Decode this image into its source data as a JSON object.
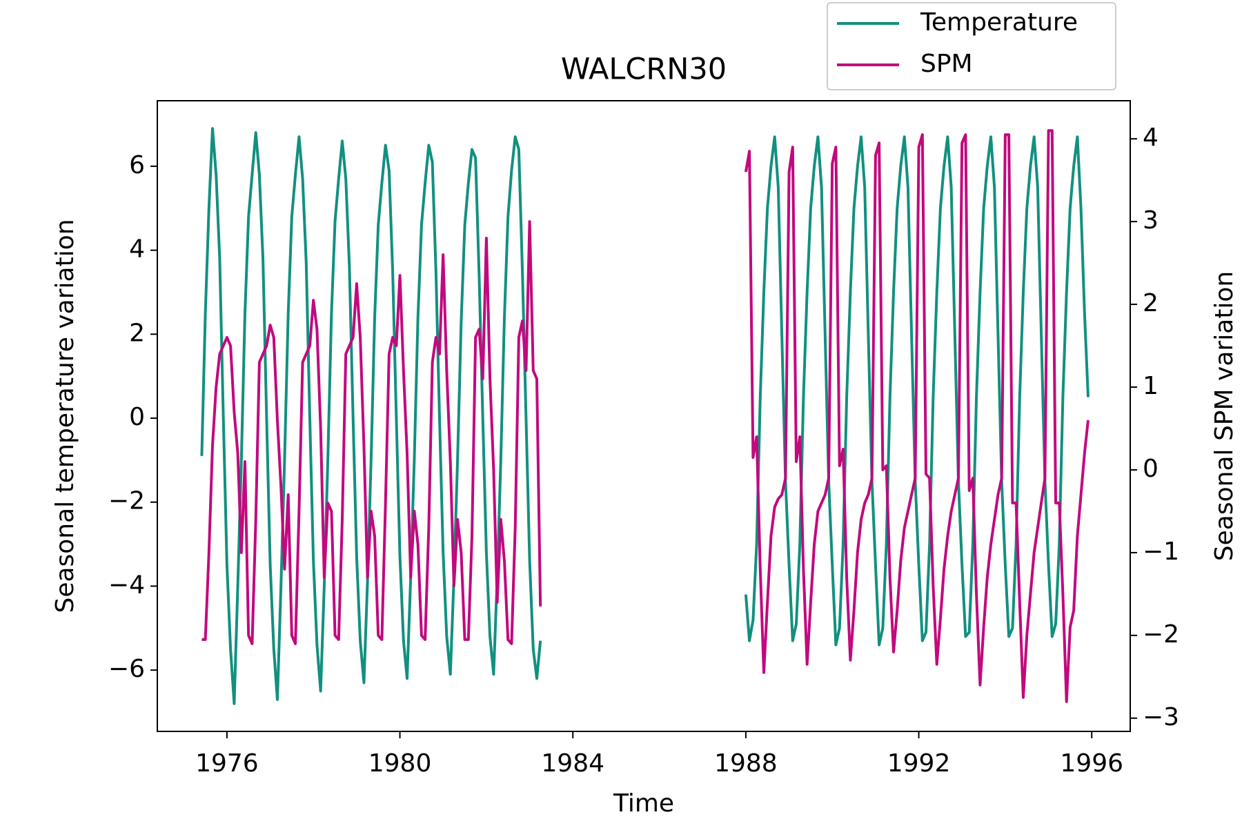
{
  "chart_data": {
    "type": "line",
    "title": "WALCRN30",
    "x_label": "Time",
    "y_label": "Seasonal temperature variation",
    "y2_label": "Seasonal SPM variation",
    "x": [
      1975.417,
      1975.5,
      1975.583,
      1975.667,
      1975.75,
      1975.833,
      1975.917,
      1976,
      1976.083,
      1976.167,
      1976.25,
      1976.333,
      1976.417,
      1976.5,
      1976.583,
      1976.667,
      1976.75,
      1976.833,
      1976.917,
      1977,
      1977.083,
      1977.167,
      1977.25,
      1977.333,
      1977.417,
      1977.5,
      1977.583,
      1977.667,
      1977.75,
      1977.833,
      1977.917,
      1978,
      1978.083,
      1978.167,
      1978.25,
      1978.333,
      1978.417,
      1978.5,
      1978.583,
      1978.667,
      1978.75,
      1978.833,
      1978.917,
      1979,
      1979.083,
      1979.167,
      1979.25,
      1979.333,
      1979.417,
      1979.5,
      1979.583,
      1979.667,
      1979.75,
      1979.833,
      1979.917,
      1980,
      1980.083,
      1980.167,
      1980.25,
      1980.333,
      1980.417,
      1980.5,
      1980.583,
      1980.667,
      1980.75,
      1980.833,
      1980.917,
      1981,
      1981.083,
      1981.167,
      1981.25,
      1981.333,
      1981.417,
      1981.5,
      1981.583,
      1981.667,
      1981.75,
      1981.833,
      1981.917,
      1982,
      1982.083,
      1982.167,
      1982.25,
      1982.333,
      1982.417,
      1982.5,
      1982.583,
      1982.667,
      1982.75,
      1982.833,
      1982.917,
      1983,
      1983.083,
      1983.167,
      1983.25,
      1983.333,
      1988,
      1988.083,
      1988.167,
      1988.25,
      1988.333,
      1988.417,
      1988.5,
      1988.583,
      1988.667,
      1988.75,
      1988.833,
      1988.917,
      1989,
      1989.083,
      1989.167,
      1989.25,
      1989.333,
      1989.417,
      1989.5,
      1989.583,
      1989.667,
      1989.75,
      1989.833,
      1989.917,
      1990,
      1990.083,
      1990.167,
      1990.25,
      1990.333,
      1990.417,
      1990.5,
      1990.583,
      1990.667,
      1990.75,
      1990.833,
      1990.917,
      1991,
      1991.083,
      1991.167,
      1991.25,
      1991.333,
      1991.417,
      1991.5,
      1991.583,
      1991.667,
      1991.75,
      1991.833,
      1991.917,
      1992,
      1992.083,
      1992.167,
      1992.25,
      1992.333,
      1992.417,
      1992.5,
      1992.583,
      1992.667,
      1992.75,
      1992.833,
      1992.917,
      1993,
      1993.083,
      1993.167,
      1993.25,
      1993.333,
      1993.417,
      1993.5,
      1993.583,
      1993.667,
      1993.75,
      1993.833,
      1993.917,
      1994,
      1994.083,
      1994.167,
      1994.25,
      1994.333,
      1994.417,
      1994.5,
      1994.583,
      1994.667,
      1994.75,
      1994.833,
      1994.917,
      1995,
      1995.083,
      1995.167,
      1995.25,
      1995.333,
      1995.417,
      1995.5,
      1995.583,
      1995.667,
      1995.75,
      1995.833,
      1995.917
    ],
    "series": [
      {
        "name": "Temperature",
        "color": "#12907f",
        "values": [
          -0.9,
          2.5,
          5.0,
          6.9,
          5.8,
          3.8,
          0.0,
          -3.5,
          -5.5,
          -6.8,
          -4.0,
          -1.0,
          2.5,
          4.8,
          5.8,
          6.8,
          5.8,
          3.8,
          0.0,
          -3.5,
          -5.5,
          -6.7,
          -4.0,
          -1.0,
          2.5,
          4.8,
          5.8,
          6.7,
          5.7,
          3.7,
          0.0,
          -3.4,
          -5.4,
          -6.5,
          -4.0,
          -1.0,
          2.5,
          4.7,
          5.7,
          6.6,
          5.7,
          3.6,
          0.0,
          -3.3,
          -5.3,
          -6.3,
          -3.9,
          -1.0,
          2.4,
          4.6,
          5.6,
          6.5,
          5.9,
          3.5,
          0.0,
          -3.3,
          -5.3,
          -6.2,
          -3.8,
          -1.0,
          2.4,
          4.6,
          5.6,
          6.5,
          6.1,
          3.5,
          0.0,
          -3.2,
          -5.2,
          -6.1,
          -3.8,
          -1.0,
          2.3,
          4.6,
          5.6,
          6.4,
          6.2,
          3.4,
          0.0,
          -3.2,
          -5.2,
          -6.1,
          -3.8,
          -1.0,
          2.4,
          4.8,
          5.9,
          6.7,
          6.4,
          3.5,
          0.0,
          -3.4,
          -5.5,
          -6.2,
          -5.3,
          null,
          -4.2,
          -5.3,
          -4.8,
          -3.0,
          0.5,
          3.0,
          5.0,
          6.0,
          6.7,
          5.5,
          2.0,
          -1.5,
          -3.5,
          -5.3,
          -4.9,
          -3.0,
          0.5,
          3.0,
          5.0,
          6.0,
          6.7,
          5.5,
          2.0,
          -1.5,
          -3.5,
          -5.4,
          -5.0,
          -3.0,
          0.5,
          3.0,
          5.0,
          6.0,
          6.7,
          5.5,
          2.0,
          -1.5,
          -3.5,
          -5.4,
          -5.0,
          -3.0,
          0.5,
          3.0,
          5.0,
          6.0,
          6.7,
          5.5,
          2.0,
          -1.5,
          -3.5,
          -5.3,
          -5.1,
          -3.0,
          0.5,
          3.0,
          5.0,
          6.0,
          6.7,
          5.5,
          2.0,
          -1.5,
          -3.5,
          -5.2,
          -5.1,
          -3.0,
          0.5,
          3.0,
          5.0,
          6.0,
          6.7,
          5.5,
          2.0,
          -1.5,
          -3.5,
          -5.2,
          -5.0,
          -3.0,
          0.5,
          3.0,
          5.0,
          6.0,
          6.7,
          5.5,
          2.0,
          -1.5,
          -3.5,
          -5.2,
          -4.9,
          -3.0,
          0.5,
          3.0,
          5.0,
          6.0,
          6.7,
          5.0,
          2.5,
          0.5
        ]
      },
      {
        "name": "SPM",
        "color": "#c2097e",
        "axis": "y2",
        "values": [
          -2.05,
          -2.05,
          -1.0,
          0.3,
          1.0,
          1.4,
          1.5,
          1.6,
          1.5,
          0.7,
          0.2,
          -1.0,
          0.1,
          -2.0,
          -2.1,
          -0.6,
          1.3,
          1.4,
          1.5,
          1.75,
          1.6,
          0.6,
          -0.2,
          -1.2,
          -0.3,
          -2.0,
          -2.1,
          -0.5,
          1.3,
          1.4,
          1.5,
          2.05,
          1.7,
          0.5,
          -1.3,
          -0.4,
          -0.5,
          -2.0,
          -2.05,
          -0.6,
          1.4,
          1.5,
          1.6,
          2.25,
          1.6,
          0.3,
          -1.3,
          -0.5,
          -0.8,
          -2.0,
          -2.05,
          -0.4,
          1.4,
          1.6,
          1.5,
          2.35,
          1.2,
          0.2,
          -1.3,
          -0.5,
          -0.9,
          -2.0,
          -2.05,
          -0.7,
          1.3,
          1.6,
          1.4,
          2.6,
          1.2,
          0.1,
          -1.4,
          -0.6,
          -1.0,
          -2.05,
          -2.05,
          -0.8,
          1.6,
          1.7,
          1.1,
          2.8,
          1.1,
          0.0,
          -1.6,
          -0.6,
          -1.1,
          -2.05,
          -2.1,
          -0.7,
          1.6,
          1.8,
          1.2,
          3.0,
          1.2,
          1.1,
          -1.65,
          null,
          3.6,
          3.85,
          0.15,
          0.4,
          -1.2,
          -2.45,
          -1.6,
          -0.8,
          -0.45,
          -0.35,
          -0.3,
          -0.1,
          3.6,
          3.9,
          0.1,
          0.4,
          -1.2,
          -2.35,
          -1.6,
          -0.9,
          -0.5,
          -0.4,
          -0.3,
          -0.1,
          3.7,
          3.9,
          0.05,
          0.25,
          -1.3,
          -2.3,
          -1.7,
          -1.0,
          -0.6,
          -0.4,
          -0.3,
          -0.1,
          3.8,
          3.95,
          0.0,
          0.05,
          -1.3,
          -2.2,
          -1.7,
          -1.1,
          -0.7,
          -0.5,
          -0.3,
          -0.1,
          3.9,
          4.05,
          -0.05,
          -0.1,
          -1.4,
          -2.35,
          -1.8,
          -1.2,
          -0.8,
          -0.5,
          -0.3,
          -0.1,
          3.95,
          4.05,
          -0.25,
          -0.1,
          -1.5,
          -2.6,
          -1.9,
          -1.3,
          -0.9,
          -0.6,
          -0.3,
          -0.1,
          4.05,
          4.05,
          -0.4,
          -0.4,
          -1.6,
          -2.75,
          -2.0,
          -1.5,
          -1.0,
          -0.7,
          -0.4,
          -0.1,
          4.1,
          4.1,
          -0.4,
          -0.4,
          -1.5,
          -2.8,
          -1.9,
          -1.7,
          -0.8,
          -0.3,
          0.2,
          0.6
        ]
      }
    ],
    "xlim": [
      1974.39,
      1996.89
    ],
    "xticks": [
      1976,
      1980,
      1984,
      1988,
      1992,
      1996
    ],
    "ylim": [
      -7.46,
      7.56
    ],
    "yticks": [
      {
        "value": -6,
        "label": "−6"
      },
      {
        "value": -4,
        "label": "−4"
      },
      {
        "value": -2,
        "label": "−2"
      },
      0,
      2,
      4,
      6
    ],
    "y2lim": [
      -3.16,
      4.46
    ],
    "y2ticks": [
      {
        "value": -3,
        "label": "−3"
      },
      {
        "value": -2,
        "label": "−2"
      },
      {
        "value": -1,
        "label": "−1"
      },
      0,
      1,
      2,
      3,
      4
    ],
    "legend": "upper right",
    "grid": false
  }
}
